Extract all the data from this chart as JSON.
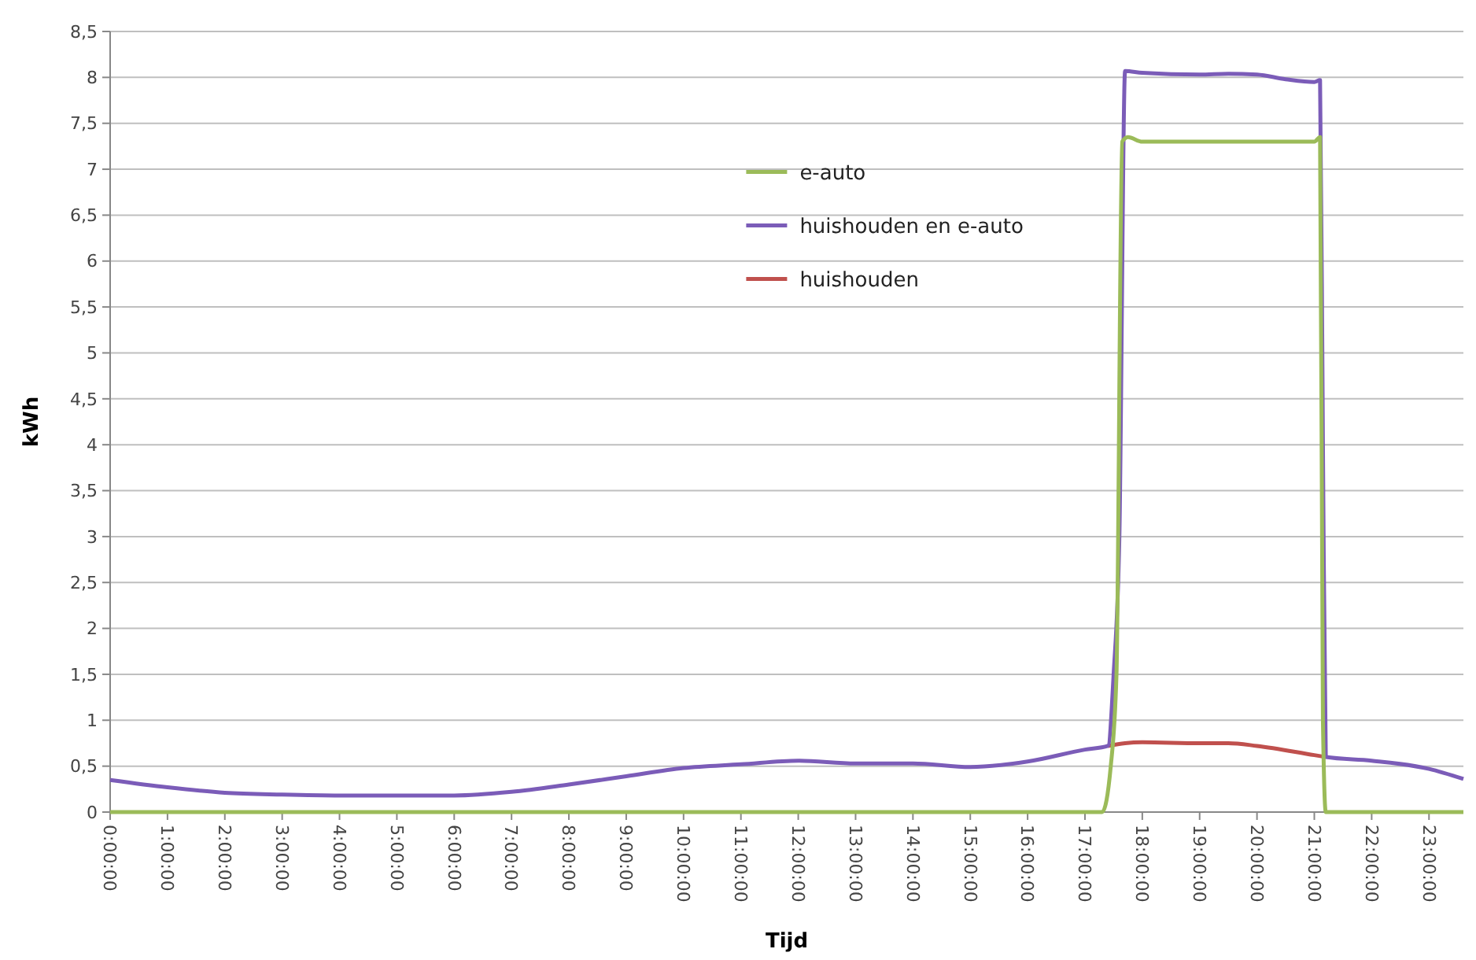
{
  "chart_data": {
    "type": "line",
    "xlabel": "Tijd",
    "ylabel": "kWh",
    "xlim": [
      0,
      23.6
    ],
    "ylim": [
      0,
      8.5
    ],
    "xticks": [
      {
        "value": 0,
        "label": "0:00:00"
      },
      {
        "value": 1,
        "label": "1:00:00"
      },
      {
        "value": 2,
        "label": "2:00:00"
      },
      {
        "value": 3,
        "label": "3:00:00"
      },
      {
        "value": 4,
        "label": "4:00:00"
      },
      {
        "value": 5,
        "label": "5:00:00"
      },
      {
        "value": 6,
        "label": "6:00:00"
      },
      {
        "value": 7,
        "label": "7:00:00"
      },
      {
        "value": 8,
        "label": "8:00:00"
      },
      {
        "value": 9,
        "label": "9:00:00"
      },
      {
        "value": 10,
        "label": "10:00:00"
      },
      {
        "value": 11,
        "label": "11:00:00"
      },
      {
        "value": 12,
        "label": "12:00:00"
      },
      {
        "value": 13,
        "label": "13:00:00"
      },
      {
        "value": 14,
        "label": "14:00:00"
      },
      {
        "value": 15,
        "label": "15:00:00"
      },
      {
        "value": 16,
        "label": "16:00:00"
      },
      {
        "value": 17,
        "label": "17:00:00"
      },
      {
        "value": 18,
        "label": "18:00:00"
      },
      {
        "value": 19,
        "label": "19:00:00"
      },
      {
        "value": 20,
        "label": "20:00:00"
      },
      {
        "value": 21,
        "label": "21:00:00"
      },
      {
        "value": 22,
        "label": "22:00:00"
      },
      {
        "value": 23,
        "label": "23:00:00"
      }
    ],
    "yticks": [
      0,
      {
        "value": 0.5,
        "label": "0,5"
      },
      1,
      {
        "value": 1.5,
        "label": "1,5"
      },
      2,
      {
        "value": 2.5,
        "label": "2,5"
      },
      3,
      {
        "value": 3.5,
        "label": "3,5"
      },
      4,
      {
        "value": 4.5,
        "label": "4,5"
      },
      5,
      {
        "value": 5.5,
        "label": "5,5"
      },
      6,
      {
        "value": 6.5,
        "label": "6,5"
      },
      7,
      {
        "value": 7.5,
        "label": "7,5"
      },
      8,
      {
        "value": 8.5,
        "label": "8,5"
      }
    ],
    "grid": "y",
    "legend": "center",
    "marker": "none",
    "line_style": "solid",
    "series": [
      {
        "name": "huishouden",
        "color": "#c0504d",
        "x": [
          17.4,
          17.7,
          18,
          19,
          19.5,
          20,
          21,
          21.2
        ],
        "values": [
          0.72,
          0.75,
          0.76,
          0.75,
          0.75,
          0.72,
          0.62,
          0.6
        ]
      },
      {
        "name": "huishouden en e-auto",
        "color": "#7b5cb8",
        "x": [
          0,
          1,
          2,
          3,
          4,
          5,
          6,
          7,
          8,
          9,
          10,
          11,
          12,
          13,
          14,
          15,
          16,
          17,
          17.4,
          17.5,
          17.6,
          17.7,
          18,
          19,
          19.5,
          20,
          20.5,
          21,
          21.1,
          21.15,
          21.2,
          22,
          23,
          23.6
        ],
        "values": [
          0.35,
          0.27,
          0.21,
          0.19,
          0.18,
          0.18,
          0.18,
          0.22,
          0.3,
          0.39,
          0.48,
          0.52,
          0.56,
          0.53,
          0.53,
          0.49,
          0.55,
          0.68,
          0.72,
          1.5,
          3,
          8.07,
          8.05,
          8.03,
          8.04,
          8.03,
          7.98,
          7.95,
          7.97,
          4,
          0.6,
          0.56,
          0.47,
          0.36
        ]
      },
      {
        "name": "e-auto",
        "color": "#9bbb59",
        "x": [
          0,
          17.3,
          17.45,
          17.55,
          17.65,
          17.75,
          18,
          19,
          20,
          21,
          21.1,
          21.15,
          21.2,
          23.6
        ],
        "values": [
          0,
          0,
          0.5,
          1.5,
          7.3,
          7.35,
          7.3,
          7.3,
          7.3,
          7.3,
          7.35,
          1,
          0,
          0
        ]
      }
    ]
  }
}
